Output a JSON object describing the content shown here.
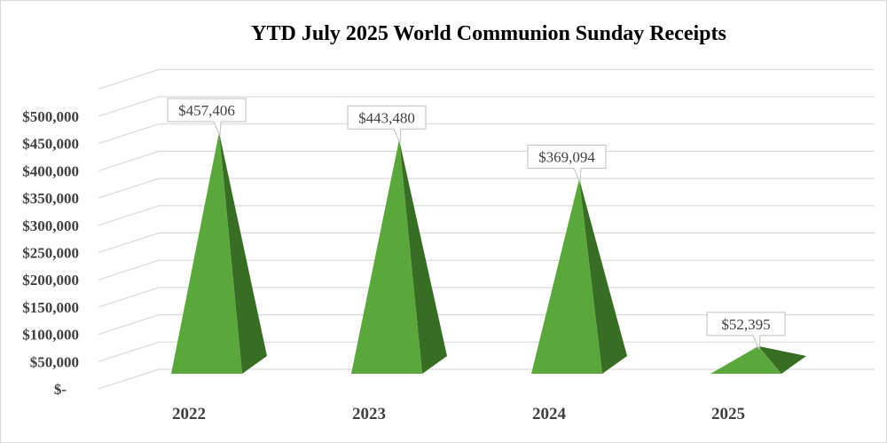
{
  "chart_data": {
    "type": "bar",
    "subtype": "3d-pyramid",
    "title": "YTD July 2025 World Communion Sunday Receipts",
    "categories": [
      "2022",
      "2023",
      "2024",
      "2025"
    ],
    "values": [
      457406,
      443480,
      369094,
      52395
    ],
    "data_labels": [
      "$457,406",
      "$443,480",
      "$369,094",
      "$52,395"
    ],
    "ylim": [
      0,
      550000
    ],
    "y_ticks": [
      0,
      50000,
      100000,
      150000,
      200000,
      250000,
      300000,
      350000,
      400000,
      450000,
      500000
    ],
    "y_tick_labels": [
      "$-",
      "$50,000",
      "$100,000",
      "$150,000",
      "$200,000",
      "$250,000",
      "$300,000",
      "$350,000",
      "$400,000",
      "$450,000",
      "$500,000"
    ],
    "xlabel": "",
    "ylabel": "",
    "grid": true,
    "legend": "none",
    "colors": {
      "front": "#5aa83c",
      "side": "#386d24",
      "grid": "#d9d9d9",
      "text": "#404040"
    }
  }
}
